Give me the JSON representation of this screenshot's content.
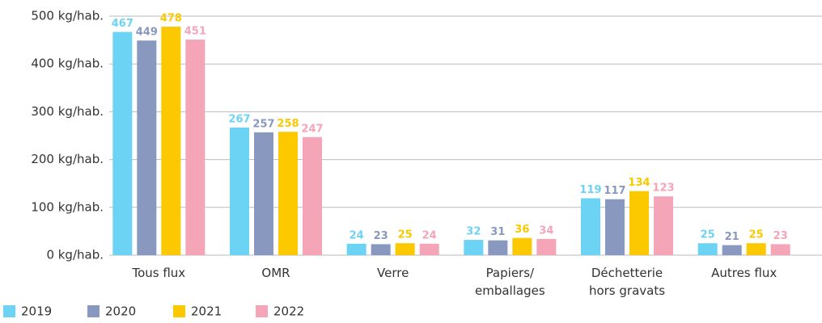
{
  "chart_data": {
    "type": "bar",
    "categories": [
      "Tous flux",
      "OMR",
      "Verre",
      "Papiers/\nemballages",
      "Déchetterie\nhors gravats",
      "Autres flux"
    ],
    "series": [
      {
        "name": "2019",
        "color": "#6dd3f5",
        "values": [
          467,
          267,
          24,
          32,
          119,
          25
        ]
      },
      {
        "name": "2020",
        "color": "#8898bf",
        "values": [
          449,
          257,
          23,
          31,
          117,
          21
        ]
      },
      {
        "name": "2021",
        "color": "#fcc800",
        "values": [
          478,
          258,
          25,
          36,
          134,
          25
        ]
      },
      {
        "name": "2022",
        "color": "#f4a5b8",
        "values": [
          451,
          247,
          24,
          34,
          123,
          23
        ]
      }
    ],
    "ylim": [
      0,
      500
    ],
    "yticks": [
      {
        "value": 0,
        "label": "0 kg/hab."
      },
      {
        "value": 100,
        "label": "100 kg/hab."
      },
      {
        "value": 200,
        "label": "200 kg/hab."
      },
      {
        "value": 300,
        "label": "300 kg/hab."
      },
      {
        "value": 400,
        "label": "400 kg/hab."
      },
      {
        "value": 500,
        "label": "500 kg/hab."
      }
    ],
    "grid": true,
    "legend": "bottom-left"
  }
}
